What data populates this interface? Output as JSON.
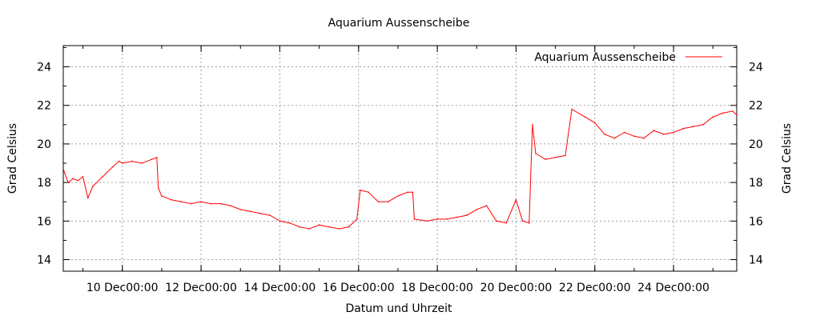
{
  "chart_data": {
    "type": "line",
    "title": "Aquarium Aussenscheibe",
    "xlabel": "Datum und Uhrzeit",
    "ylabel": "Grad Celsius",
    "y2label": "Grad Celsius",
    "ylim": [
      13.4,
      25.1
    ],
    "xlim": [
      "2012-12-08T12:00",
      "2012-12-25T14:30"
    ],
    "grid": true,
    "legend_position": "top-right",
    "yticks": [
      14,
      16,
      18,
      20,
      22,
      24
    ],
    "ytick_labels": [
      "14",
      "16",
      "18",
      "20",
      "22",
      "24"
    ],
    "xticks": [
      "2012-12-10T00:00",
      "2012-12-12T00:00",
      "2012-12-14T00:00",
      "2012-12-16T00:00",
      "2012-12-18T00:00",
      "2012-12-20T00:00",
      "2012-12-22T00:00",
      "2012-12-24T00:00"
    ],
    "xtick_labels": [
      "10 Dec00:00",
      "12 Dec00:00",
      "14 Dec00:00",
      "16 Dec00:00",
      "18 Dec00:00",
      "20 Dec00:00",
      "22 Dec00:00",
      "24 Dec00:00"
    ],
    "series": [
      {
        "name": "Aquarium Aussenscheibe",
        "color": "#ff0000",
        "points": [
          [
            "2012-12-08T12:00",
            18.7
          ],
          [
            "2012-12-08T15:00",
            18.0
          ],
          [
            "2012-12-08T18:00",
            18.2
          ],
          [
            "2012-12-08T21:00",
            18.1
          ],
          [
            "2012-12-09T00:00",
            18.3
          ],
          [
            "2012-12-09T03:00",
            17.2
          ],
          [
            "2012-12-09T06:00",
            17.8
          ],
          [
            "2012-12-09T12:00",
            18.3
          ],
          [
            "2012-12-09T18:00",
            18.8
          ],
          [
            "2012-12-09T22:00",
            19.1
          ],
          [
            "2012-12-10T00:00",
            19.0
          ],
          [
            "2012-12-10T06:00",
            19.1
          ],
          [
            "2012-12-10T12:00",
            19.0
          ],
          [
            "2012-12-10T18:00",
            19.2
          ],
          [
            "2012-12-10T21:00",
            19.3
          ],
          [
            "2012-12-10T22:00",
            17.7
          ],
          [
            "2012-12-11T00:00",
            17.3
          ],
          [
            "2012-12-11T06:00",
            17.1
          ],
          [
            "2012-12-11T12:00",
            17.0
          ],
          [
            "2012-12-11T18:00",
            16.9
          ],
          [
            "2012-12-12T00:00",
            17.0
          ],
          [
            "2012-12-12T06:00",
            16.9
          ],
          [
            "2012-12-12T12:00",
            16.9
          ],
          [
            "2012-12-12T18:00",
            16.8
          ],
          [
            "2012-12-13T00:00",
            16.6
          ],
          [
            "2012-12-13T06:00",
            16.5
          ],
          [
            "2012-12-13T12:00",
            16.4
          ],
          [
            "2012-12-13T18:00",
            16.3
          ],
          [
            "2012-12-14T00:00",
            16.0
          ],
          [
            "2012-12-14T06:00",
            15.9
          ],
          [
            "2012-12-14T12:00",
            15.7
          ],
          [
            "2012-12-14T18:00",
            15.6
          ],
          [
            "2012-12-15T00:00",
            15.8
          ],
          [
            "2012-12-15T06:00",
            15.7
          ],
          [
            "2012-12-15T12:00",
            15.6
          ],
          [
            "2012-12-15T18:00",
            15.7
          ],
          [
            "2012-12-15T23:00",
            16.1
          ],
          [
            "2012-12-16T01:00",
            17.6
          ],
          [
            "2012-12-16T06:00",
            17.5
          ],
          [
            "2012-12-16T12:00",
            17.0
          ],
          [
            "2012-12-16T18:00",
            17.0
          ],
          [
            "2012-12-17T00:00",
            17.3
          ],
          [
            "2012-12-17T06:00",
            17.5
          ],
          [
            "2012-12-17T09:00",
            17.5
          ],
          [
            "2012-12-17T10:00",
            16.1
          ],
          [
            "2012-12-17T18:00",
            16.0
          ],
          [
            "2012-12-18T00:00",
            16.1
          ],
          [
            "2012-12-18T06:00",
            16.1
          ],
          [
            "2012-12-18T12:00",
            16.2
          ],
          [
            "2012-12-18T18:00",
            16.3
          ],
          [
            "2012-12-19T00:00",
            16.6
          ],
          [
            "2012-12-19T06:00",
            16.8
          ],
          [
            "2012-12-19T12:00",
            16.0
          ],
          [
            "2012-12-19T18:00",
            15.9
          ],
          [
            "2012-12-20T00:00",
            17.1
          ],
          [
            "2012-12-20T04:00",
            16.0
          ],
          [
            "2012-12-20T08:00",
            15.9
          ],
          [
            "2012-12-20T10:00",
            21.0
          ],
          [
            "2012-12-20T12:00",
            19.5
          ],
          [
            "2012-12-20T18:00",
            19.2
          ],
          [
            "2012-12-21T00:00",
            19.3
          ],
          [
            "2012-12-21T06:00",
            19.4
          ],
          [
            "2012-12-21T10:00",
            21.8
          ],
          [
            "2012-12-21T18:00",
            21.4
          ],
          [
            "2012-12-22T00:00",
            21.1
          ],
          [
            "2012-12-22T06:00",
            20.5
          ],
          [
            "2012-12-22T12:00",
            20.3
          ],
          [
            "2012-12-22T18:00",
            20.6
          ],
          [
            "2012-12-23T00:00",
            20.4
          ],
          [
            "2012-12-23T06:00",
            20.3
          ],
          [
            "2012-12-23T12:00",
            20.7
          ],
          [
            "2012-12-23T18:00",
            20.5
          ],
          [
            "2012-12-24T00:00",
            20.6
          ],
          [
            "2012-12-24T06:00",
            20.8
          ],
          [
            "2012-12-24T12:00",
            20.9
          ],
          [
            "2012-12-24T18:00",
            21.0
          ],
          [
            "2012-12-25T00:00",
            21.4
          ],
          [
            "2012-12-25T06:00",
            21.6
          ],
          [
            "2012-12-25T12:00",
            21.7
          ],
          [
            "2012-12-25T14:30",
            21.5
          ]
        ]
      }
    ]
  }
}
